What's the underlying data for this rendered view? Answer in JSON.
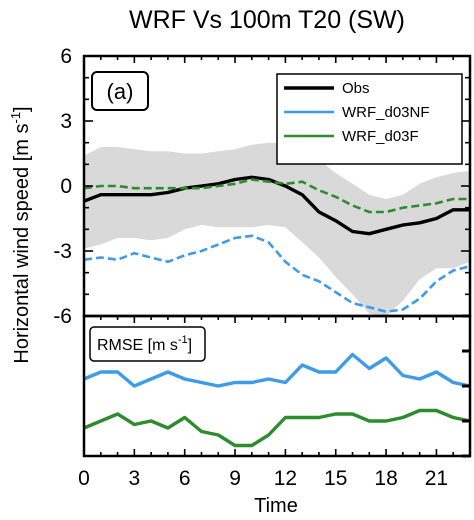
{
  "chart_data": [
    {
      "type": "line",
      "title": "WRF Vs 100m T20 (SW)",
      "panel_label": "(a)",
      "ylabel": "Horizontal wind speed [m s",
      "ylabel_sup": "-1",
      "ylabel_tail": "]",
      "xlabel": "Time",
      "xlim": [
        0,
        23
      ],
      "ylim": [
        -6,
        6
      ],
      "xticks": [
        "0",
        "3",
        "6",
        "9",
        "12",
        "15",
        "18",
        "21"
      ],
      "yticks": [
        "6",
        "3",
        "0",
        "-3",
        "-6"
      ],
      "x": [
        0,
        1,
        2,
        3,
        4,
        5,
        6,
        7,
        8,
        9,
        10,
        11,
        12,
        13,
        14,
        15,
        16,
        17,
        18,
        19,
        20,
        21,
        22,
        23
      ],
      "band": {
        "color": "#d9d9d9",
        "upper": [
          1.4,
          1.8,
          1.8,
          1.7,
          1.6,
          1.6,
          1.5,
          1.5,
          1.6,
          1.7,
          1.9,
          2.0,
          2.0,
          1.7,
          1.2,
          0.6,
          0.1,
          -0.4,
          -0.6,
          -0.4,
          0.1,
          0.4,
          0.6,
          0.7
        ],
        "lower": [
          -2.9,
          -2.7,
          -2.4,
          -2.4,
          -2.5,
          -2.4,
          -2.0,
          -1.8,
          -1.9,
          -1.9,
          -1.9,
          -1.8,
          -1.9,
          -2.6,
          -3.3,
          -4.2,
          -5.0,
          -5.9,
          -6.0,
          -5.3,
          -4.3,
          -3.8,
          -3.8,
          -3.5
        ]
      },
      "series": [
        {
          "name": "Obs",
          "color": "#000000",
          "style": "solid",
          "width": 3.4,
          "values": [
            -0.7,
            -0.4,
            -0.4,
            -0.4,
            -0.4,
            -0.3,
            -0.1,
            0.0,
            0.1,
            0.3,
            0.4,
            0.3,
            0.0,
            -0.4,
            -1.2,
            -1.6,
            -2.1,
            -2.2,
            -2.0,
            -1.8,
            -1.7,
            -1.5,
            -1.1,
            -1.1
          ]
        },
        {
          "name": "WRF_d03NF",
          "color": "#3d9be9",
          "style": "dashed",
          "width": 2.6,
          "values": [
            -3.4,
            -3.3,
            -3.4,
            -3.1,
            -3.3,
            -3.5,
            -3.2,
            -3.0,
            -2.7,
            -2.4,
            -2.3,
            -2.6,
            -3.5,
            -4.1,
            -4.4,
            -4.9,
            -5.4,
            -5.6,
            -5.8,
            -5.7,
            -5.2,
            -4.4,
            -3.9,
            -3.7
          ]
        },
        {
          "name": "WRF_d03F",
          "color": "#2e8b2e",
          "style": "dashed",
          "width": 2.6,
          "values": [
            -0.1,
            0.0,
            0.0,
            -0.1,
            -0.1,
            -0.1,
            -0.1,
            -0.1,
            0.0,
            0.1,
            0.3,
            0.2,
            0.1,
            0.2,
            -0.2,
            -0.5,
            -0.9,
            -1.2,
            -1.2,
            -1.0,
            -0.9,
            -0.8,
            -0.6,
            -0.6
          ]
        }
      ],
      "legend": {
        "position": "top-right"
      },
      "grid": false
    },
    {
      "type": "line",
      "label": "RMSE [m s",
      "label_sup": "-1",
      "label_tail": "]",
      "xlim": [
        0,
        23
      ],
      "ylim": [
        0,
        4
      ],
      "x": [
        0,
        1,
        2,
        3,
        4,
        5,
        6,
        7,
        8,
        9,
        10,
        11,
        12,
        13,
        14,
        15,
        16,
        17,
        18,
        19,
        20,
        21,
        22,
        23
      ],
      "series": [
        {
          "color": "#3d9be9",
          "style": "solid",
          "width": 3.4,
          "values": [
            2.2,
            2.4,
            2.4,
            2.0,
            2.2,
            2.4,
            2.2,
            2.1,
            2.0,
            2.1,
            2.1,
            2.2,
            2.1,
            2.6,
            2.4,
            2.4,
            2.9,
            2.5,
            2.8,
            2.3,
            2.2,
            2.4,
            2.1,
            2.0
          ]
        },
        {
          "color": "#2e8b2e",
          "style": "solid",
          "width": 3.4,
          "values": [
            0.8,
            1.0,
            1.2,
            0.9,
            1.0,
            0.8,
            1.1,
            0.7,
            0.6,
            0.3,
            0.3,
            0.6,
            1.1,
            1.1,
            1.1,
            1.2,
            1.2,
            1.0,
            1.0,
            1.1,
            1.3,
            1.3,
            1.1,
            1.0
          ]
        }
      ]
    }
  ]
}
